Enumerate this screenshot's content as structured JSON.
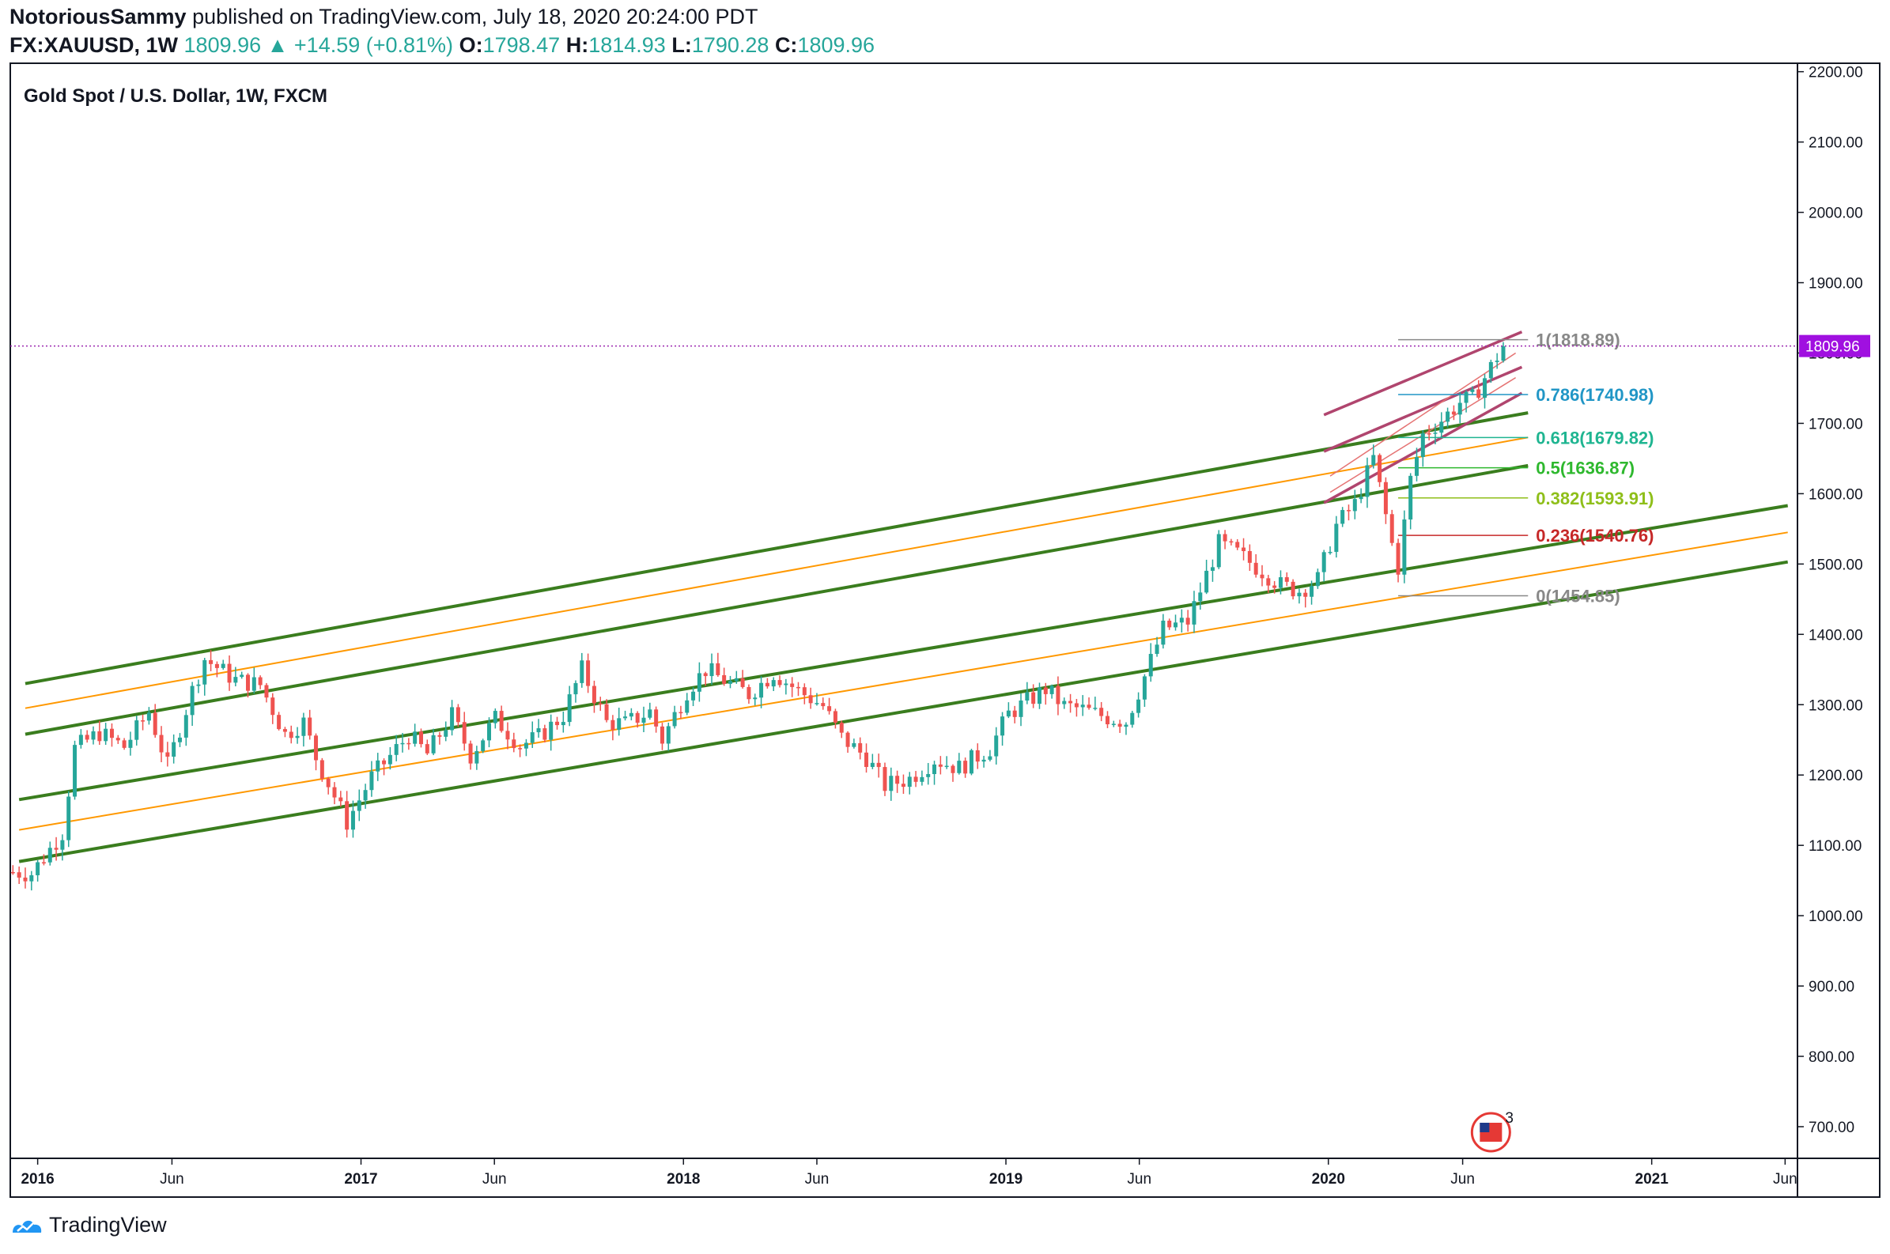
{
  "header": {
    "author": "NotoriousSammy",
    "published_text": "published on TradingView.com, July 18, 2020 20:24:00 PDT",
    "symbol_line": "FX:XAUUSD, 1W",
    "last": "1809.96",
    "change": "+14.59 (+0.81%)",
    "o_label": "O:",
    "o_value": "1798.47",
    "h_label": "H:",
    "h_value": "1814.93",
    "l_label": "L:",
    "l_value": "1790.28",
    "c_label": "C:",
    "c_value": "1809.96"
  },
  "footer": {
    "brand": "TradingView"
  },
  "colors": {
    "up": "#26a69a",
    "down": "#ef5350",
    "channel_green": "#3a7d1e",
    "channel_orange": "#ff9800",
    "pitchfork": "#b0456e",
    "price_line": "#9c27b0"
  },
  "chart_data": {
    "type": "candlestick",
    "title": "Gold Spot / U.S. Dollar, 1W, FXCM",
    "ylabel": "",
    "ylim": [
      655,
      2212
    ],
    "y_ticks": [
      "2200.00",
      "2100.00",
      "2000.00",
      "1900.00",
      "1800.00",
      "1700.00",
      "1600.00",
      "1500.00",
      "1400.00",
      "1300.00",
      "1200.00",
      "1100.00",
      "1000.00",
      "900.00",
      "800.00",
      "700.00"
    ],
    "y_tick_values": [
      2200,
      2100,
      2000,
      1900,
      1800,
      1700,
      1600,
      1500,
      1400,
      1300,
      1200,
      1100,
      1000,
      900,
      800,
      700
    ],
    "x_ticks": [
      {
        "label": "2016",
        "date": "2016-01-01",
        "bold": true
      },
      {
        "label": "Jun",
        "date": "2016-06-01",
        "bold": false
      },
      {
        "label": "2017",
        "date": "2017-01-01",
        "bold": true
      },
      {
        "label": "Jun",
        "date": "2017-06-01",
        "bold": false
      },
      {
        "label": "2018",
        "date": "2018-01-01",
        "bold": true
      },
      {
        "label": "Jun",
        "date": "2018-06-01",
        "bold": false
      },
      {
        "label": "2019",
        "date": "2019-01-01",
        "bold": true
      },
      {
        "label": "Jun",
        "date": "2019-06-01",
        "bold": false
      },
      {
        "label": "2020",
        "date": "2020-01-01",
        "bold": true
      },
      {
        "label": "Jun",
        "date": "2020-06-01",
        "bold": false
      },
      {
        "label": "2021",
        "date": "2021-01-01",
        "bold": true
      },
      {
        "label": "Jun",
        "date": "2021-06-01",
        "bold": false
      }
    ],
    "x_range": [
      "2015-12-01",
      "2021-06-15"
    ],
    "price_label": "1809.96",
    "price_value": 1809.96,
    "close_path": [
      [
        "2015-12-04",
        1062
      ],
      [
        "2015-12-25",
        1060
      ],
      [
        "2016-01-29",
        1118
      ],
      [
        "2016-02-12",
        1238
      ],
      [
        "2016-03-11",
        1260
      ],
      [
        "2016-04-08",
        1240
      ],
      [
        "2016-05-06",
        1290
      ],
      [
        "2016-05-27",
        1213
      ],
      [
        "2016-06-24",
        1320
      ],
      [
        "2016-07-08",
        1365
      ],
      [
        "2016-08-12",
        1335
      ],
      [
        "2016-09-09",
        1328
      ],
      [
        "2016-10-07",
        1258
      ],
      [
        "2016-10-28",
        1275
      ],
      [
        "2016-11-11",
        1225
      ],
      [
        "2016-12-16",
        1133
      ],
      [
        "2017-01-13",
        1197
      ],
      [
        "2017-02-24",
        1257
      ],
      [
        "2017-03-17",
        1230
      ],
      [
        "2017-04-14",
        1285
      ],
      [
        "2017-05-05",
        1228
      ],
      [
        "2017-06-02",
        1280
      ],
      [
        "2017-06-30",
        1242
      ],
      [
        "2017-07-21",
        1254
      ],
      [
        "2017-08-18",
        1285
      ],
      [
        "2017-09-08",
        1350
      ],
      [
        "2017-10-06",
        1275
      ],
      [
        "2017-10-27",
        1273
      ],
      [
        "2017-11-24",
        1290
      ],
      [
        "2017-12-08",
        1250
      ],
      [
        "2018-01-05",
        1320
      ],
      [
        "2018-01-26",
        1350
      ],
      [
        "2018-02-23",
        1330
      ],
      [
        "2018-03-16",
        1315
      ],
      [
        "2018-04-13",
        1345
      ],
      [
        "2018-05-11",
        1320
      ],
      [
        "2018-06-08",
        1298
      ],
      [
        "2018-06-29",
        1253
      ],
      [
        "2018-07-27",
        1225
      ],
      [
        "2018-08-17",
        1185
      ],
      [
        "2018-09-14",
        1195
      ],
      [
        "2018-10-12",
        1222
      ],
      [
        "2018-11-09",
        1210
      ],
      [
        "2018-12-14",
        1238
      ],
      [
        "2019-01-04",
        1287
      ],
      [
        "2019-02-15",
        1322
      ],
      [
        "2019-03-08",
        1298
      ],
      [
        "2019-03-29",
        1293
      ],
      [
        "2019-04-26",
        1282
      ],
      [
        "2019-05-17",
        1276
      ],
      [
        "2019-06-07",
        1340
      ],
      [
        "2019-06-28",
        1408
      ],
      [
        "2019-07-26",
        1418
      ],
      [
        "2019-08-30",
        1529
      ],
      [
        "2019-09-20",
        1515
      ],
      [
        "2019-10-18",
        1490
      ],
      [
        "2019-11-08",
        1470
      ],
      [
        "2019-11-29",
        1462
      ],
      [
        "2019-12-20",
        1478
      ],
      [
        "2020-01-10",
        1555
      ],
      [
        "2020-01-31",
        1585
      ],
      [
        "2020-02-21",
        1650
      ],
      [
        "2020-03-13",
        1528
      ],
      [
        "2020-03-20",
        1495
      ],
      [
        "2020-04-03",
        1620
      ],
      [
        "2020-04-17",
        1684
      ],
      [
        "2020-05-08",
        1705
      ],
      [
        "2020-05-29",
        1730
      ],
      [
        "2020-06-12",
        1735
      ],
      [
        "2020-06-26",
        1765
      ],
      [
        "2020-07-10",
        1795
      ],
      [
        "2020-07-17",
        1810
      ]
    ],
    "channels": [
      {
        "color": "green",
        "points": [
          [
            "2015-12-18",
            1330
          ],
          [
            "2020-08-14",
            1715
          ]
        ]
      },
      {
        "color": "orange",
        "points": [
          [
            "2015-12-18",
            1295
          ],
          [
            "2020-08-14",
            1680
          ]
        ]
      },
      {
        "color": "green",
        "points": [
          [
            "2015-12-18",
            1258
          ],
          [
            "2020-08-14",
            1640
          ]
        ]
      },
      {
        "color": "green",
        "points": [
          [
            "2015-12-11",
            1165
          ],
          [
            "2021-06-04",
            1583
          ]
        ]
      },
      {
        "color": "orange",
        "points": [
          [
            "2015-12-11",
            1122
          ],
          [
            "2021-06-04",
            1545
          ]
        ]
      },
      {
        "color": "green",
        "points": [
          [
            "2015-12-11",
            1077
          ],
          [
            "2021-06-04",
            1503
          ]
        ]
      }
    ],
    "pitchfork": [
      {
        "points": [
          [
            "2019-12-27",
            1712
          ],
          [
            "2020-08-07",
            1830
          ]
        ]
      },
      {
        "points": [
          [
            "2019-12-27",
            1660
          ],
          [
            "2020-08-07",
            1780
          ]
        ]
      },
      {
        "points": [
          [
            "2019-12-27",
            1587
          ],
          [
            "2020-08-07",
            1743
          ]
        ]
      },
      {
        "points": [
          [
            "2020-01-03",
            1625
          ],
          [
            "2020-07-31",
            1800
          ]
        ]
      },
      {
        "points": [
          [
            "2020-01-03",
            1602
          ],
          [
            "2020-07-31",
            1765
          ]
        ]
      }
    ],
    "fibonacci": {
      "start_date": "2020-03-20",
      "end_date": "2020-08-14",
      "levels": [
        {
          "label": "1(1818.89)",
          "value": 1818.89,
          "color": "#888888"
        },
        {
          "label": "0.786(1740.98)",
          "value": 1740.98,
          "color": "#2196c6"
        },
        {
          "label": "0.618(1679.82)",
          "value": 1679.82,
          "color": "#1fb591"
        },
        {
          "label": "0.5(1636.87)",
          "value": 1636.87,
          "color": "#2eb82e"
        },
        {
          "label": "0.382(1593.91)",
          "value": 1593.91,
          "color": "#8fbf1a"
        },
        {
          "label": "0.236(1540.76)",
          "value": 1540.76,
          "color": "#c62828"
        },
        {
          "label": "0(1454.85)",
          "value": 1454.85,
          "color": "#888888"
        }
      ]
    },
    "event_marker": {
      "date": "2020-07-03",
      "count": "3"
    }
  }
}
